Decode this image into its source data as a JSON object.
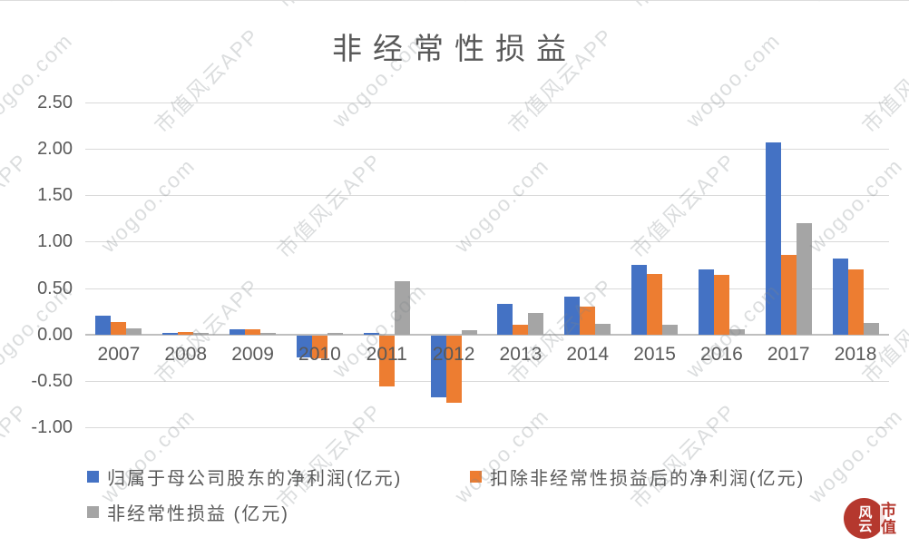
{
  "title": "非经常性损益",
  "watermark": {
    "texts": [
      "市值风云APP",
      "wogoo.com"
    ],
    "color": "#c9cdd1"
  },
  "logo": {
    "circle_text": "风云",
    "side_text": "市值",
    "color": "#b5382e"
  },
  "colors": {
    "series_blue": "#4472C4",
    "series_orange": "#ED7D31",
    "series_gray": "#A5A5A5",
    "axis_text": "#595959",
    "gridline": "#d9d9d9",
    "zero_line": "#bfbfbf"
  },
  "chart_data": {
    "type": "bar",
    "title": "非经常性损益",
    "categories": [
      "2007",
      "2008",
      "2009",
      "2010",
      "2011",
      "2012",
      "2013",
      "2014",
      "2015",
      "2016",
      "2017",
      "2018"
    ],
    "series": [
      {
        "name": "归属于母公司股东的净利润(亿元)",
        "color": "#4472C4",
        "values": [
          0.2,
          0.02,
          0.06,
          -0.24,
          0.02,
          -0.67,
          0.33,
          0.41,
          0.75,
          0.7,
          2.07,
          0.82
        ]
      },
      {
        "name": "扣除非经常性损益后的净利润(亿元)",
        "color": "#ED7D31",
        "values": [
          0.13,
          0.03,
          0.06,
          -0.25,
          -0.55,
          -0.73,
          0.1,
          0.3,
          0.65,
          0.64,
          0.86,
          0.7
        ]
      },
      {
        "name": "非经常性损益 (亿元)",
        "color": "#A5A5A5",
        "values": [
          0.07,
          0.01,
          0.01,
          0.02,
          0.57,
          0.05,
          0.23,
          0.11,
          0.1,
          0.06,
          1.2,
          0.12
        ]
      }
    ],
    "ylim": [
      -1.0,
      2.5
    ],
    "ytick_step": 0.5,
    "ytick_labels": [
      "2.50",
      "2.00",
      "1.50",
      "1.00",
      "0.50",
      "0.00",
      "-0.50",
      "-1.00"
    ],
    "grid": true,
    "legend_position": "bottom-left",
    "legend_rows": [
      [
        0,
        1
      ],
      [
        2
      ]
    ]
  }
}
